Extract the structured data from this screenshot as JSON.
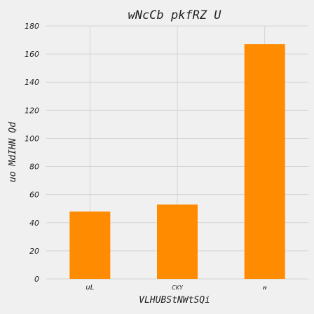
{
  "chart_data": {
    "type": "bar",
    "title": "wNcCb pkfRZ U",
    "xlabel": "VLHUBStNWtSQi",
    "ylabel": "uo MdIHN Qd",
    "categories": [
      "uL",
      "CKY",
      "w"
    ],
    "values": [
      48,
      53,
      167
    ],
    "ylim": [
      0,
      180
    ],
    "yticks": [
      0,
      20,
      40,
      60,
      80,
      100,
      120,
      140,
      160,
      180
    ],
    "grid": true,
    "bar_color": "#ff8c00",
    "background_color": "#f0f0f0",
    "grid_color": "#d4d4d4"
  }
}
